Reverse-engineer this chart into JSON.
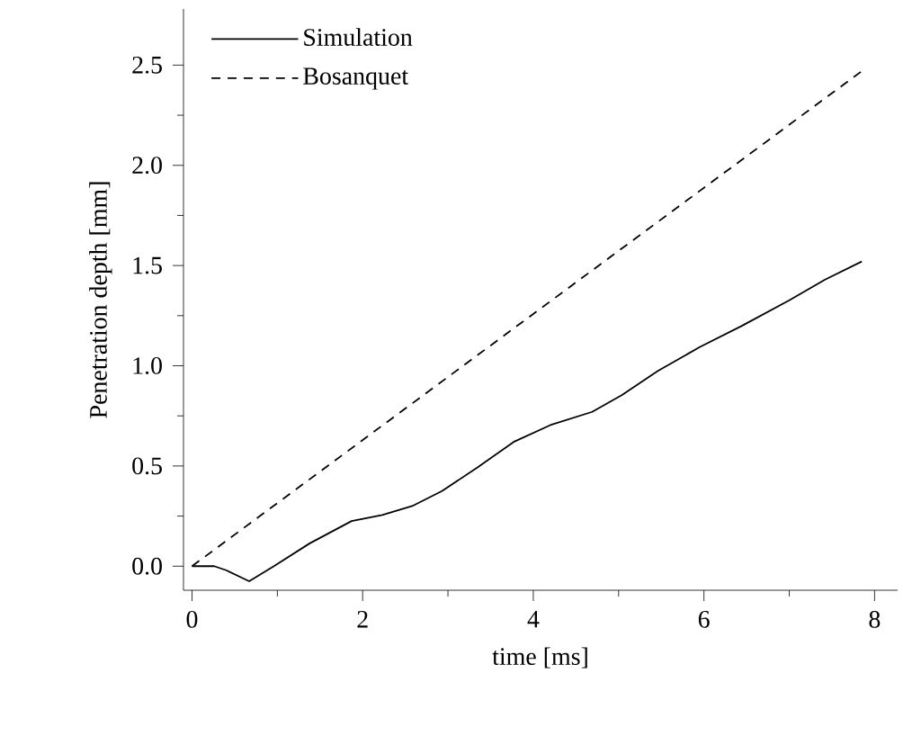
{
  "chart_data": {
    "type": "line",
    "xlabel": "time [ms]",
    "ylabel": "Penetration depth [mm]",
    "xlim": [
      -0.1,
      8.27
    ],
    "ylim": [
      -0.12,
      2.78
    ],
    "xticks": [
      0,
      {
        "value": 1,
        "label": null
      },
      2,
      {
        "value": 3,
        "label": null
      },
      4,
      {
        "value": 5,
        "label": null
      },
      6,
      {
        "value": 7,
        "label": null
      },
      8
    ],
    "yticks": [
      {
        "value": 0,
        "label": "0.0"
      },
      {
        "value": 0.25,
        "label": null
      },
      {
        "value": 0.5,
        "label": "0.5"
      },
      {
        "value": 0.75,
        "label": null
      },
      {
        "value": 1,
        "label": "1.0"
      },
      {
        "value": 1.25,
        "label": null
      },
      {
        "value": 1.5,
        "label": "1.5"
      },
      {
        "value": 1.75,
        "label": null
      },
      {
        "value": 2,
        "label": "2.0"
      },
      {
        "value": 2.25,
        "label": null
      },
      {
        "value": 2.5,
        "label": "2.5"
      }
    ],
    "grid": false,
    "legend": "top left",
    "series": [
      {
        "name": "Simulation",
        "color": "#000000",
        "line_style": "solid",
        "x": [
          0,
          0.26,
          0.4,
          0.67,
          0.96,
          1.38,
          1.87,
          2.23,
          2.58,
          2.93,
          3.35,
          3.77,
          4.2,
          4.69,
          5.04,
          5.46,
          5.95,
          6.44,
          7.0,
          7.42,
          7.85
        ],
        "values": [
          0,
          0,
          -0.02,
          -0.075,
          0,
          0.114,
          0.225,
          0.255,
          0.3,
          0.375,
          0.494,
          0.62,
          0.704,
          0.77,
          0.854,
          0.974,
          1.093,
          1.198,
          1.327,
          1.43,
          1.52
        ]
      },
      {
        "name": "Bosanquet",
        "color": "#000000",
        "line_style": "dashed",
        "x": [
          0,
          7.85
        ],
        "values": [
          0,
          2.47
        ]
      }
    ]
  }
}
